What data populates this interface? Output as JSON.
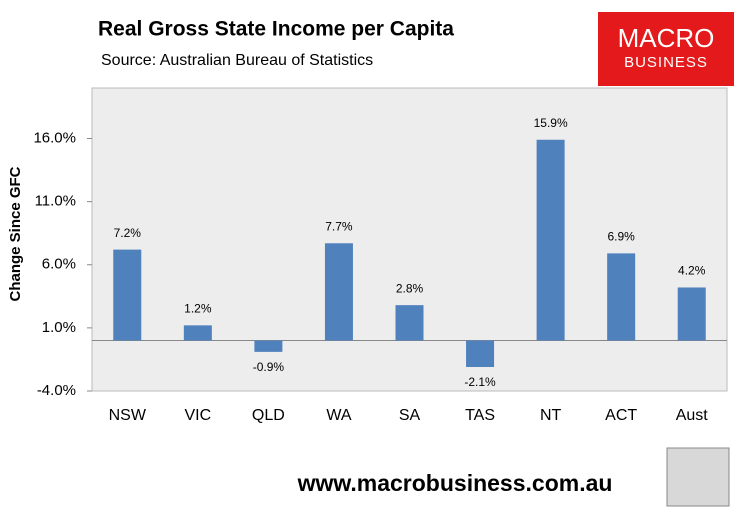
{
  "chart_data": {
    "type": "bar",
    "title": "Real Gross State Income per Capita",
    "subtitle": "Source: Australian Bureau of Statistics",
    "y_label": "Change Since GFC",
    "logo": [
      "MACRO",
      "BUSINESS"
    ],
    "footer": "www.macrobusiness.com.au",
    "categories": [
      "NSW",
      "VIC",
      "QLD",
      "WA",
      "SA",
      "TAS",
      "NT",
      "ACT",
      "Aust"
    ],
    "values": [
      7.2,
      1.2,
      -0.9,
      7.7,
      2.8,
      -2.1,
      15.9,
      6.9,
      4.2
    ],
    "value_labels": [
      "7.2%",
      "1.2%",
      "-0.9%",
      "7.7%",
      "2.8%",
      "-2.1%",
      "15.9%",
      "6.9%",
      "4.2%"
    ],
    "color": "#4f81bd",
    "ylim": [
      -4,
      20
    ],
    "yticks": [
      {
        "value": -4,
        "label": "-4.0%"
      },
      {
        "value": 1,
        "label": "1.0%"
      },
      {
        "value": 6,
        "label": "6.0%"
      },
      {
        "value": 11,
        "label": "11.0%"
      },
      {
        "value": 16,
        "label": "16.0%"
      }
    ],
    "grid": false
  }
}
